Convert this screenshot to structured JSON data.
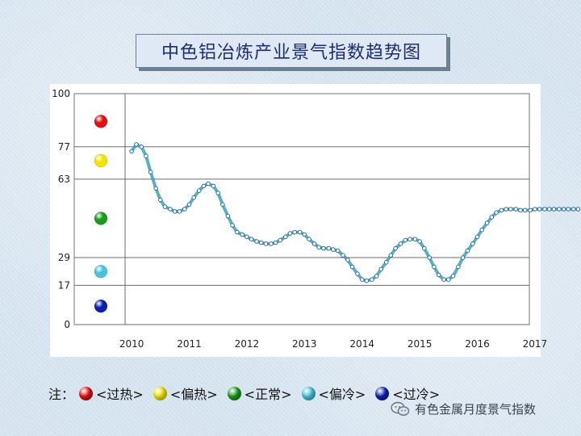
{
  "chart_data": {
    "type": "line",
    "title": "中色铝冶炼产业景气指数趋势图",
    "xlabel": "",
    "ylabel": "",
    "x_tick_labels": [
      "2010",
      "2011",
      "2012",
      "2013",
      "2014",
      "2015",
      "2016",
      "2017"
    ],
    "y_ticks": [
      0,
      17,
      29,
      63,
      77,
      100
    ],
    "ylim": [
      0,
      100
    ],
    "xlim": [
      2009.9,
      2017.8
    ],
    "grid": "horizontal",
    "zone_balls": [
      {
        "name": "过热",
        "color": "#e01010",
        "y": 88
      },
      {
        "name": "偏热",
        "color": "#f2e400",
        "y": 71
      },
      {
        "name": "正常",
        "color": "#1a9a1a",
        "y": 46
      },
      {
        "name": "偏冷",
        "color": "#46c4dc",
        "y": 23
      },
      {
        "name": "过冷",
        "color": "#0a1fae",
        "y": 8
      }
    ],
    "series": [
      {
        "color": "#3f9fc4",
        "points": [
          [
            2010.0,
            75
          ],
          [
            2010.08,
            78
          ],
          [
            2010.17,
            77
          ],
          [
            2010.25,
            73
          ],
          [
            2010.33,
            66
          ],
          [
            2010.42,
            59
          ],
          [
            2010.5,
            54
          ],
          [
            2010.58,
            51
          ],
          [
            2010.67,
            50
          ],
          [
            2010.75,
            49
          ],
          [
            2010.83,
            49
          ],
          [
            2010.92,
            50
          ],
          [
            2011.0,
            52
          ],
          [
            2011.08,
            55
          ],
          [
            2011.17,
            58
          ],
          [
            2011.25,
            60
          ],
          [
            2011.33,
            61
          ],
          [
            2011.42,
            60
          ],
          [
            2011.5,
            57
          ],
          [
            2011.58,
            52
          ],
          [
            2011.67,
            47
          ],
          [
            2011.75,
            43
          ],
          [
            2011.83,
            40
          ],
          [
            2011.92,
            39
          ],
          [
            2012.0,
            38
          ],
          [
            2012.08,
            37
          ],
          [
            2012.17,
            36
          ],
          [
            2012.25,
            35.5
          ],
          [
            2012.33,
            35
          ],
          [
            2012.42,
            35
          ],
          [
            2012.5,
            35.5
          ],
          [
            2012.58,
            36.5
          ],
          [
            2012.67,
            38
          ],
          [
            2012.75,
            39.5
          ],
          [
            2012.83,
            40
          ],
          [
            2012.92,
            40
          ],
          [
            2013.0,
            39
          ],
          [
            2013.08,
            37
          ],
          [
            2013.17,
            35
          ],
          [
            2013.25,
            33.5
          ],
          [
            2013.33,
            33
          ],
          [
            2013.42,
            33
          ],
          [
            2013.5,
            32.5
          ],
          [
            2013.58,
            32
          ],
          [
            2013.67,
            30
          ],
          [
            2013.75,
            28
          ],
          [
            2013.83,
            25
          ],
          [
            2013.92,
            22
          ],
          [
            2014.0,
            19.5
          ],
          [
            2014.08,
            19
          ],
          [
            2014.17,
            19.5
          ],
          [
            2014.25,
            21
          ],
          [
            2014.33,
            24
          ],
          [
            2014.42,
            27
          ],
          [
            2014.5,
            30
          ],
          [
            2014.58,
            33
          ],
          [
            2014.67,
            35
          ],
          [
            2014.75,
            36.5
          ],
          [
            2014.83,
            37
          ],
          [
            2014.92,
            37
          ],
          [
            2015.0,
            36
          ],
          [
            2015.08,
            33
          ],
          [
            2015.17,
            29
          ],
          [
            2015.25,
            25
          ],
          [
            2015.33,
            21.5
          ],
          [
            2015.42,
            19.5
          ],
          [
            2015.5,
            19.5
          ],
          [
            2015.58,
            21
          ],
          [
            2015.67,
            25
          ],
          [
            2015.75,
            29
          ],
          [
            2015.83,
            32
          ],
          [
            2015.92,
            35
          ],
          [
            2016.0,
            38
          ],
          [
            2016.08,
            41
          ],
          [
            2016.17,
            44
          ],
          [
            2016.25,
            46.5
          ],
          [
            2016.33,
            48.5
          ],
          [
            2016.42,
            49.5
          ],
          [
            2016.5,
            50
          ],
          [
            2016.58,
            50
          ],
          [
            2016.67,
            50
          ],
          [
            2016.75,
            49.5
          ],
          [
            2016.83,
            49.5
          ],
          [
            2016.92,
            49.5
          ],
          [
            2017.0,
            50
          ],
          [
            2017.08,
            50
          ],
          [
            2017.17,
            50
          ],
          [
            2017.25,
            50
          ],
          [
            2017.33,
            50
          ],
          [
            2017.42,
            50
          ],
          [
            2017.5,
            50
          ],
          [
            2017.58,
            50
          ],
          [
            2017.67,
            50
          ],
          [
            2017.75,
            50
          ]
        ]
      }
    ]
  },
  "legend": {
    "prefix": "注：",
    "items": [
      {
        "label": "<过热>",
        "color": "#e01010"
      },
      {
        "label": "<偏热>",
        "color": "#f2e400"
      },
      {
        "label": "<正常>",
        "color": "#1a9a1a"
      },
      {
        "label": "<偏冷>",
        "color": "#46c4dc"
      },
      {
        "label": "<过冷>",
        "color": "#0a1fae"
      }
    ]
  },
  "watermark": {
    "text": "有色金属月度景气指数",
    "icon": "wechat-icon"
  }
}
